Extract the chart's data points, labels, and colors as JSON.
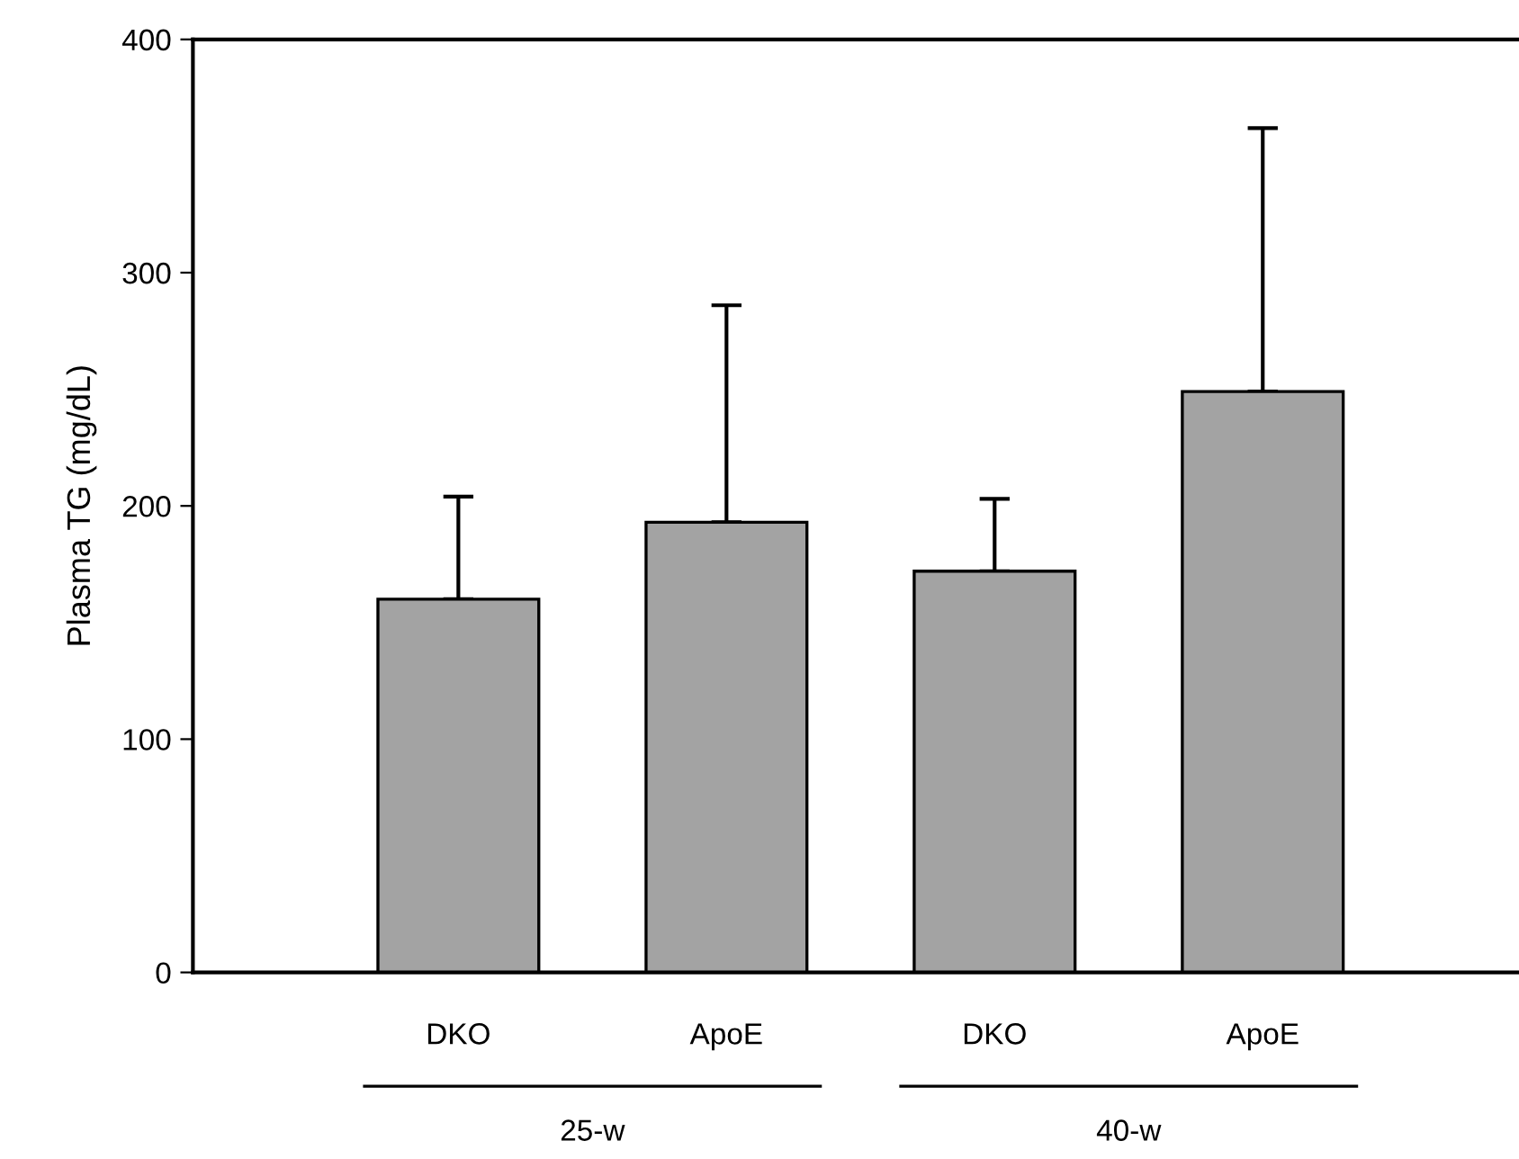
{
  "chart_data": {
    "type": "bar",
    "ylabel": "Plasma TG (mg/dL)",
    "categories": [
      "DKO",
      "ApoE",
      "DKO",
      "ApoE"
    ],
    "values": [
      160,
      193,
      172,
      249
    ],
    "errors": [
      [
        160,
        204
      ],
      [
        193,
        286
      ],
      [
        172,
        203
      ],
      [
        249,
        362
      ]
    ],
    "color": "#a3a3a3",
    "ylim": [
      0,
      400
    ],
    "yticks": [
      0,
      100,
      200,
      300,
      400
    ],
    "grid": false,
    "legend": false,
    "annotations": [
      "25-w",
      "40-w"
    ]
  }
}
